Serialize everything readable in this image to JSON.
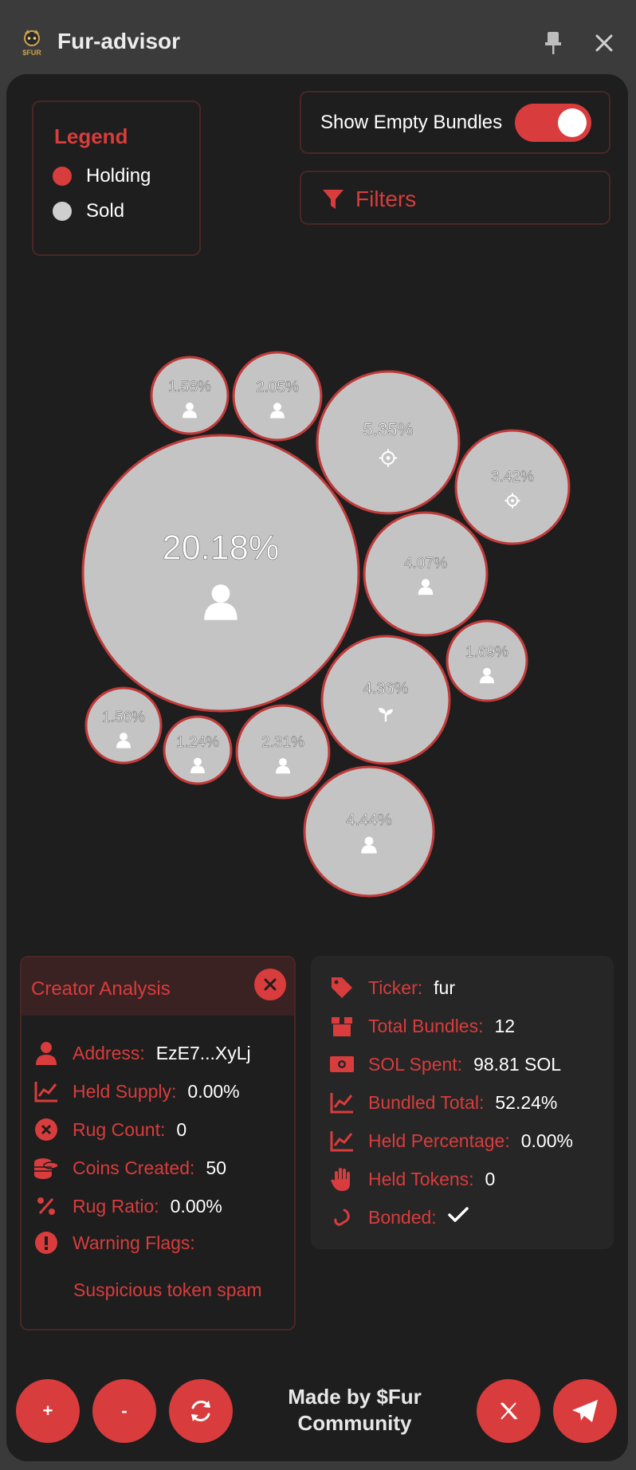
{
  "app": {
    "title": "Fur-advisor",
    "logo_text": "$FUR"
  },
  "legend": {
    "title": "Legend",
    "items": [
      {
        "label": "Holding",
        "color": "#d93c3c"
      },
      {
        "label": "Sold",
        "color": "#cfcfcf"
      }
    ]
  },
  "toggle": {
    "label": "Show Empty Bundles",
    "on": true
  },
  "filters": {
    "label": "Filters"
  },
  "bubbles": [
    {
      "pct": "20.18%",
      "icon": "person-icon",
      "status": "sold"
    },
    {
      "pct": "1.58%",
      "icon": "person-icon",
      "status": "sold"
    },
    {
      "pct": "2.05%",
      "icon": "person-icon",
      "status": "sold"
    },
    {
      "pct": "5.35%",
      "icon": "crosshair-icon",
      "status": "sold"
    },
    {
      "pct": "3.42%",
      "icon": "crosshair-icon",
      "status": "sold"
    },
    {
      "pct": "4.07%",
      "icon": "person-icon",
      "status": "sold"
    },
    {
      "pct": "1.69%",
      "icon": "person-icon",
      "status": "sold"
    },
    {
      "pct": "4.36%",
      "icon": "sprout-icon",
      "status": "sold"
    },
    {
      "pct": "1.56%",
      "icon": "person-icon",
      "status": "sold"
    },
    {
      "pct": "1.24%",
      "icon": "person-icon",
      "status": "sold"
    },
    {
      "pct": "2.31%",
      "icon": "person-icon",
      "status": "sold"
    },
    {
      "pct": "4.44%",
      "icon": "person-icon",
      "status": "sold"
    }
  ],
  "creator": {
    "title": "Creator Analysis",
    "rows": [
      {
        "label": "Address:",
        "value": "EzE7...XyLj",
        "icon": "person-icon"
      },
      {
        "label": "Held Supply:",
        "value": "0.00%",
        "icon": "chart-line-icon"
      },
      {
        "label": "Rug Count:",
        "value": "0",
        "icon": "x-circle-icon"
      },
      {
        "label": "Coins Created:",
        "value": "50",
        "icon": "coins-icon"
      },
      {
        "label": "Rug Ratio:",
        "value": "0.00%",
        "icon": "percent-icon"
      },
      {
        "label": "Warning Flags:",
        "value": "",
        "icon": "exclamation-circle-icon"
      }
    ],
    "warning": "Suspicious token spam"
  },
  "stats": {
    "rows": [
      {
        "label": "Ticker:",
        "value": "fur",
        "icon": "tag-icon"
      },
      {
        "label": "Total Bundles:",
        "value": "12",
        "icon": "box-icon"
      },
      {
        "label": "SOL Spent:",
        "value": "98.81 SOL",
        "icon": "money-icon"
      },
      {
        "label": "Bundled Total:",
        "value": "52.24%",
        "icon": "chart-line-icon"
      },
      {
        "label": "Held Percentage:",
        "value": "0.00%",
        "icon": "chart-line-icon"
      },
      {
        "label": "Held Tokens:",
        "value": "0",
        "icon": "hand-icon"
      },
      {
        "label": "Bonded:",
        "value": "",
        "icon": "link-icon"
      }
    ]
  },
  "footer": {
    "plus": "+",
    "minus": "-",
    "made_by_line1": "Made by $Fur",
    "made_by_line2": "Community"
  }
}
